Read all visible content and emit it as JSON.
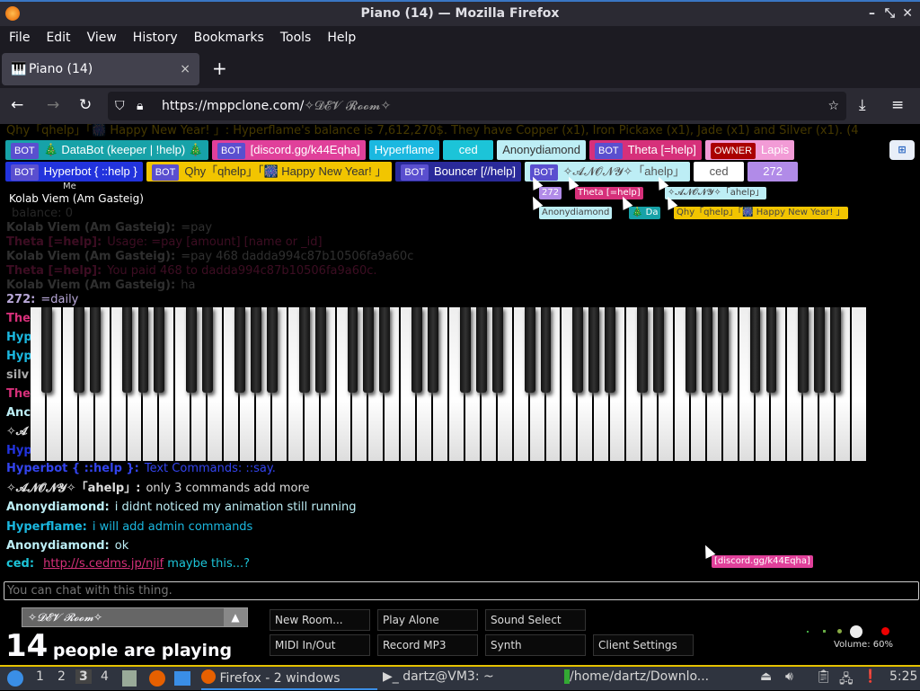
{
  "window": {
    "title": "Piano (14) — Mozilla Firefox"
  },
  "menu": [
    "File",
    "Edit",
    "View",
    "History",
    "Bookmarks",
    "Tools",
    "Help"
  ],
  "tab": {
    "label": "Piano (14)",
    "close": "×",
    "new": "+"
  },
  "nav": {
    "url_host": "https://mppclone.com/",
    "url_path": "✧𝓓𝓔𝓥 𝓡𝓸𝓸𝓶✧"
  },
  "top_faded": "Qhy「qhelp」「🎆 Happy New Year! 」: Hyperflame's balance is 7,612,270$. They have Copper (x1), Iron Pickaxe (x1), Jade (x1) and Silver (x1). (4",
  "participants": [
    {
      "bot": "BOT",
      "name": "🎄 DataBot (keeper | !help) 🎄",
      "color": "#17a2a8"
    },
    {
      "bot": "BOT",
      "name": "[discord.gg/k44Eqha]",
      "color": "#e0409a"
    },
    {
      "bot": "",
      "name": "Hyperflame",
      "color": "#1bb8e0"
    },
    {
      "bot": "",
      "name": "ced",
      "color": "#1cc4d8"
    },
    {
      "bot": "",
      "name": "Anonydiamond",
      "color": "#bdeef5"
    },
    {
      "bot": "BOT",
      "name": "Theta [=help]",
      "color": "#d6307a"
    },
    {
      "bot": "OWNER",
      "name": "Lapis",
      "color": "#f29bd6"
    },
    {
      "bot": "BOT",
      "name": "Hyperbot { ::help }",
      "color": "#2233dd"
    },
    {
      "bot": "BOT",
      "name": "Qhy「qhelp」「🎆 Happy New Year! 」",
      "color": "#f2c500"
    },
    {
      "bot": "BOT",
      "name": "Bouncer [//help]",
      "color": "#2a2a9a"
    },
    {
      "bot": "BOT",
      "name": "✧𝓐𝓝𝓞𝓝𝓨✧「ahelp」",
      "color": "#bdeef5"
    },
    {
      "bot": "",
      "name": "ced",
      "color": "#ffffff"
    },
    {
      "bot": "",
      "name": "272",
      "color": "#b18be8"
    }
  ],
  "me": {
    "label": "Me",
    "name": "Kolab Viem (Am Gasteig)"
  },
  "cursor_tags": [
    "272",
    "Theta [=help]",
    "✧𝓐𝓝𝓞𝓝𝓨✧「ahelp」",
    "Anonydiamond",
    "🎄 Da",
    "Qhy「qhelp」「🎆 Happy New Year! 」",
    "[discord.gg/k44Eqha]"
  ],
  "chat_faded": [
    {
      "name": "",
      "text": "balance: 0",
      "color": "#888"
    },
    {
      "name": "Kolab Viem (Am Gasteig):",
      "text": "=pay",
      "color": "#aaa"
    },
    {
      "name": "Theta [=help]:",
      "text": "Usage: =pay [amount] [name or _id]",
      "color": "#d6307a"
    },
    {
      "name": "Kolab Viem (Am Gasteig):",
      "text": "=pay 468 dadda994c87b10506fa9a60c",
      "color": "#aaa"
    },
    {
      "name": "Theta [=help]:",
      "text": "You paid 468 to dadda994c87b10506fa9a60c.",
      "color": "#d6307a"
    },
    {
      "name": "Kolab Viem (Am Gasteig):",
      "text": "ha",
      "color": "#aaa"
    }
  ],
  "chat_mid": [
    {
      "name": "272:",
      "text": "=daily",
      "color": "#b8a8d8"
    },
    {
      "name": "The",
      "text": "",
      "color": "#d6307a"
    },
    {
      "name": "Hyp",
      "text": "",
      "color": "#1bb8e0"
    },
    {
      "name": "Hyp",
      "text": "",
      "color": "#1bb8e0"
    },
    {
      "name": "silv",
      "text": "",
      "color": "#aaa"
    },
    {
      "name": "The",
      "text": "",
      "color": "#d6307a"
    },
    {
      "name": "Anc",
      "text": "",
      "color": "#bdeef5"
    },
    {
      "name": "✧𝓐",
      "text": "",
      "color": "#ddd"
    },
    {
      "name": "Hyp",
      "text": "",
      "color": "#2233dd"
    }
  ],
  "chat": [
    {
      "name": "Hyperbot { ::help }:",
      "text": "Text Commands: ::say.",
      "color": "#3344ee"
    },
    {
      "name": "✧𝓐𝓝𝓞𝓝𝓨✧「ahelp」:",
      "text": "only 3 commands add more",
      "color": "#ddd"
    },
    {
      "name": "Anonydiamond:",
      "text": "i didnt noticed my animation still running",
      "color": "#bdeef5"
    },
    {
      "name": "Hyperflame:",
      "text": "i will add admin commands",
      "color": "#1bb8e0"
    },
    {
      "name": "Anonydiamond:",
      "text": "ok",
      "color": "#bdeef5"
    }
  ],
  "ced_line": {
    "name": "ced:",
    "link": "http://s.cedms.jp/njif",
    "text": "maybe this...?",
    "color": "#1cc4d8"
  },
  "chat_input": {
    "placeholder": "You can chat with this thing."
  },
  "room": {
    "name": "✧𝓓𝓔𝓥 𝓡𝓸𝓸𝓶✧",
    "count": "14",
    "count_label": "people are playing"
  },
  "buttons": [
    "New Room...",
    "Play Alone",
    "Sound Select",
    "MIDI In/Out",
    "Record MP3",
    "Synth",
    "Client Settings"
  ],
  "volume": {
    "label": "Volume: 60%",
    "value": 60
  },
  "piano": {
    "white_keys": 52
  },
  "taskbar": {
    "workspaces": [
      "1",
      "2",
      "3",
      "4"
    ],
    "active_workspace": "3",
    "tasks": [
      "Firefox - 2 windows",
      "dartz@VM3: ~",
      "/home/dartz/Downlo..."
    ],
    "clock": "5:25"
  }
}
